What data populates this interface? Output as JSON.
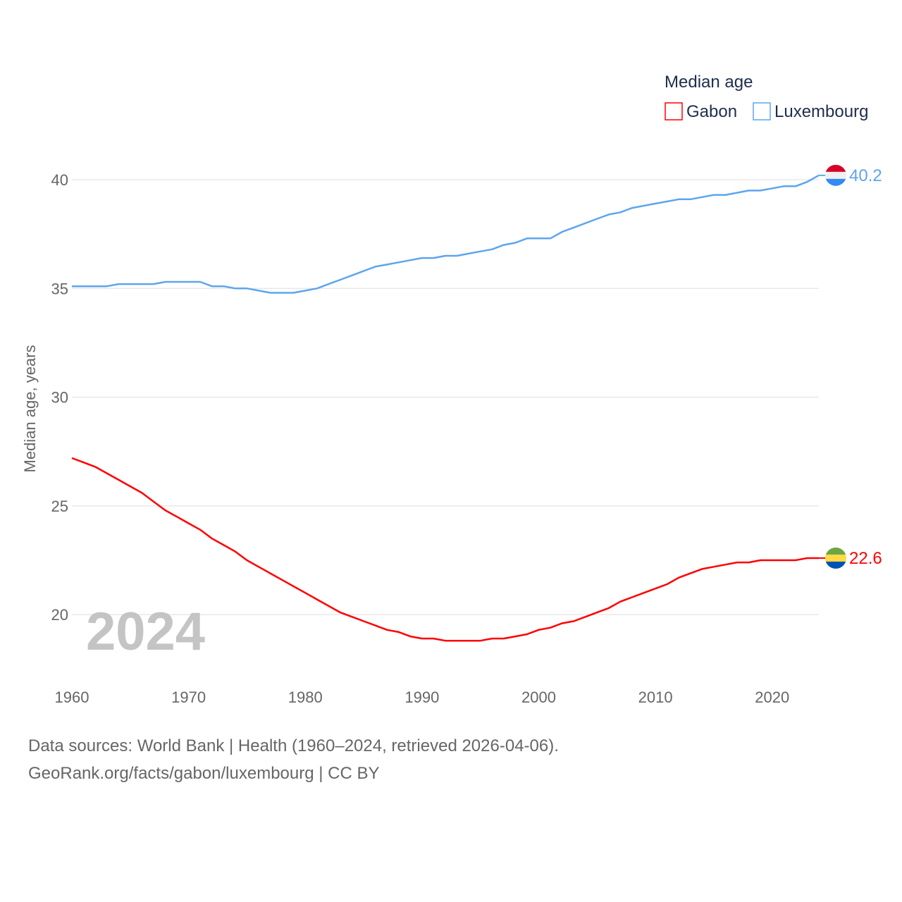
{
  "chart_data": {
    "type": "line",
    "title": "Median age",
    "ylabel": "Median age, years",
    "xlabel": "",
    "year_watermark": "2024",
    "xlim": [
      1960,
      2024
    ],
    "ylim": [
      17.5,
      42
    ],
    "xticks": [
      "1960",
      "1970",
      "1980",
      "1990",
      "2000",
      "2010",
      "2020"
    ],
    "yticks": [
      "20",
      "25",
      "30",
      "35",
      "40"
    ],
    "grid": true,
    "legend_position": "top-right",
    "x": [
      1960,
      1961,
      1962,
      1963,
      1964,
      1965,
      1966,
      1967,
      1968,
      1969,
      1970,
      1971,
      1972,
      1973,
      1974,
      1975,
      1976,
      1977,
      1978,
      1979,
      1980,
      1981,
      1982,
      1983,
      1984,
      1985,
      1986,
      1987,
      1988,
      1989,
      1990,
      1991,
      1992,
      1993,
      1994,
      1995,
      1996,
      1997,
      1998,
      1999,
      2000,
      2001,
      2002,
      2003,
      2004,
      2005,
      2006,
      2007,
      2008,
      2009,
      2010,
      2011,
      2012,
      2013,
      2014,
      2015,
      2016,
      2017,
      2018,
      2019,
      2020,
      2021,
      2022,
      2023,
      2024
    ],
    "series": [
      {
        "name": "Gabon",
        "color": "#ff0000",
        "end_label": "22.6",
        "flag": "gabon-flag",
        "values": [
          27.2,
          27.0,
          26.8,
          26.5,
          26.2,
          25.9,
          25.6,
          25.2,
          24.8,
          24.5,
          24.2,
          23.9,
          23.5,
          23.2,
          22.9,
          22.5,
          22.2,
          21.9,
          21.6,
          21.3,
          21.0,
          20.7,
          20.4,
          20.1,
          19.9,
          19.7,
          19.5,
          19.3,
          19.2,
          19.0,
          18.9,
          18.9,
          18.8,
          18.8,
          18.8,
          18.8,
          18.9,
          18.9,
          19.0,
          19.1,
          19.3,
          19.4,
          19.6,
          19.7,
          19.9,
          20.1,
          20.3,
          20.6,
          20.8,
          21.0,
          21.2,
          21.4,
          21.7,
          21.9,
          22.1,
          22.2,
          22.3,
          22.4,
          22.4,
          22.5,
          22.5,
          22.5,
          22.5,
          22.6,
          22.6
        ]
      },
      {
        "name": "Luxembourg",
        "color": "#5ea5ee",
        "end_label": "40.2",
        "flag": "luxembourg-flag",
        "values": [
          35.1,
          35.1,
          35.1,
          35.1,
          35.2,
          35.2,
          35.2,
          35.2,
          35.3,
          35.3,
          35.3,
          35.3,
          35.1,
          35.1,
          35.0,
          35.0,
          34.9,
          34.8,
          34.8,
          34.8,
          34.9,
          35.0,
          35.2,
          35.4,
          35.6,
          35.8,
          36.0,
          36.1,
          36.2,
          36.3,
          36.4,
          36.4,
          36.5,
          36.5,
          36.6,
          36.7,
          36.8,
          37.0,
          37.1,
          37.3,
          37.3,
          37.3,
          37.6,
          37.8,
          38.0,
          38.2,
          38.4,
          38.5,
          38.7,
          38.8,
          38.9,
          39.0,
          39.1,
          39.1,
          39.2,
          39.3,
          39.3,
          39.4,
          39.5,
          39.5,
          39.6,
          39.7,
          39.7,
          39.9,
          40.2
        ]
      }
    ]
  },
  "footer": {
    "line1": "Data sources: World Bank | Health (1960–2024, retrieved 2026-04-06).",
    "line2": "GeoRank.org/facts/gabon/luxembourg | CC BY"
  }
}
